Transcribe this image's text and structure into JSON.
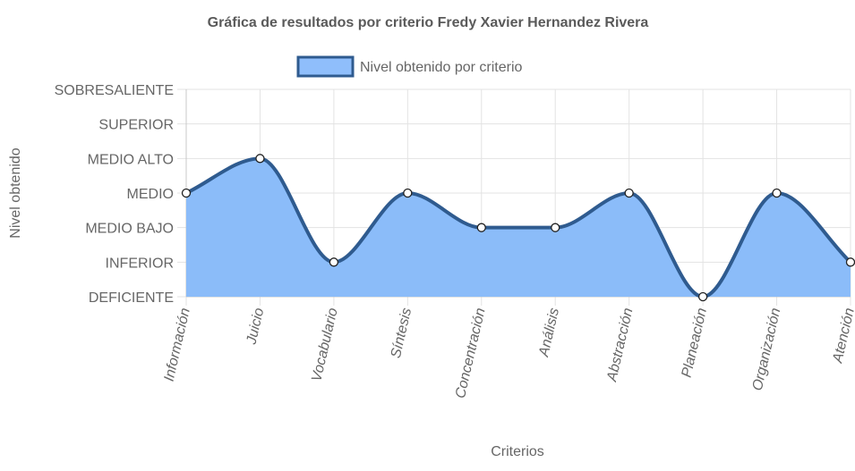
{
  "chart_data": {
    "type": "area",
    "title": "Gráfica de resultados por criterio Fredy Xavier Hernandez Rivera",
    "xlabel": "Criterios",
    "ylabel": "Nivel obtenido",
    "categories": [
      "Información",
      "Juicio",
      "Vocabulario",
      "Síntesis",
      "Concentración",
      "Análisis",
      "Abstracción",
      "Planeación",
      "Organización",
      "Atención"
    ],
    "y_levels": [
      "DEFICIENTE",
      "INFERIOR",
      "MEDIO BAJO",
      "MEDIO",
      "MEDIO ALTO",
      "SUPERIOR",
      "SOBRESALIENTE"
    ],
    "ylim": [
      0,
      6
    ],
    "series": [
      {
        "name": "Nivel obtenido por criterio",
        "values": [
          3,
          4,
          1,
          3,
          2,
          2,
          3,
          0,
          3,
          1
        ]
      }
    ],
    "legend_position": "top",
    "grid": true,
    "colors": {
      "line": "#2f5b8f",
      "fill": "#8bbcf9",
      "legend_fill": "#8fbefb",
      "grid": "#dddddd",
      "axis_text": "#666666",
      "title_text": "#5a5a5a"
    }
  }
}
